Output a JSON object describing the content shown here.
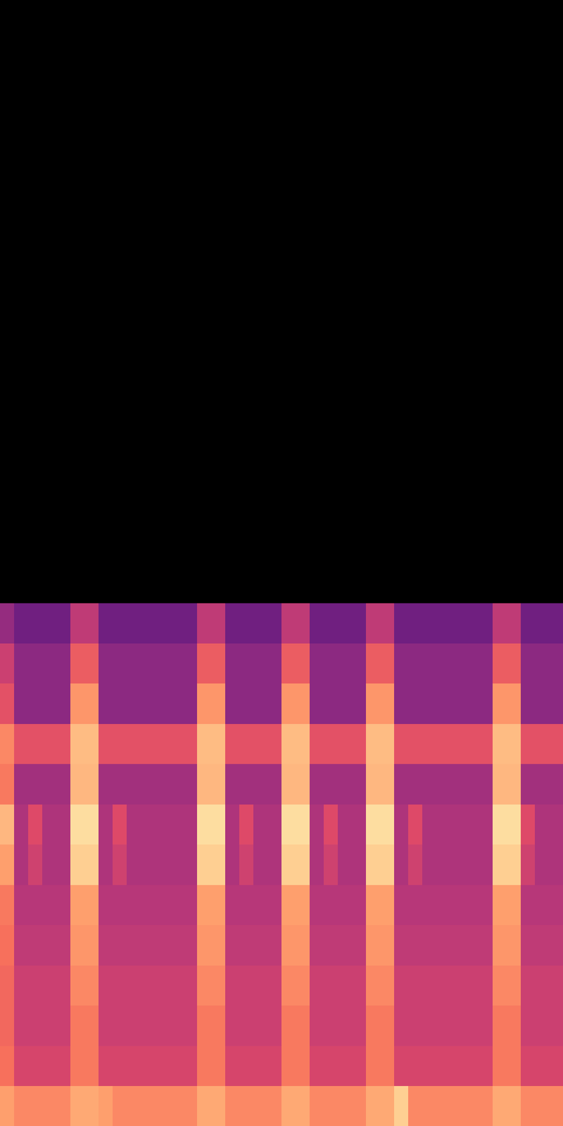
{
  "chart_data": {
    "type": "heatmap",
    "tick_labels": false,
    "xlim": [
      0,
      40
    ],
    "ylim": [
      0,
      28
    ],
    "zlim": [
      0,
      100
    ],
    "x": [
      0.5,
      1.5,
      2.5,
      3.5,
      4.5,
      5.5,
      6.5,
      7.5,
      8.5,
      9.5,
      10.5,
      11.5,
      12.5,
      13.5,
      14.5,
      15.5,
      16.5,
      17.5,
      18.5,
      19.5,
      20.5,
      21.5,
      22.5,
      23.5,
      24.5,
      25.5,
      26.5,
      27.5,
      28.5,
      29.5,
      30.5,
      31.5,
      32.5,
      33.5,
      34.5,
      35.5,
      36.5,
      37.5,
      38.5,
      39.5
    ],
    "y": [
      0.5,
      1.5,
      2.5,
      3.5,
      4.5,
      5.5,
      6.5,
      7.5,
      8.5,
      9.5,
      10.5,
      11.5,
      12.5
    ],
    "z": [
      [
        80,
        75,
        75,
        75,
        75,
        82,
        82,
        80,
        75,
        75,
        75,
        75,
        75,
        75,
        82,
        82,
        75,
        75,
        75,
        75,
        82,
        82,
        75,
        75,
        75,
        75,
        82,
        82,
        90,
        75,
        75,
        75,
        75,
        75,
        75,
        82,
        82,
        75,
        75,
        75
      ],
      [
        70,
        58,
        58,
        58,
        58,
        72,
        72,
        58,
        58,
        58,
        58,
        58,
        58,
        58,
        72,
        72,
        58,
        58,
        58,
        58,
        72,
        72,
        58,
        58,
        58,
        58,
        72,
        72,
        58,
        58,
        58,
        58,
        58,
        58,
        58,
        72,
        72,
        58,
        58,
        58
      ],
      [
        68,
        55,
        55,
        55,
        55,
        72,
        72,
        55,
        55,
        55,
        55,
        55,
        55,
        55,
        72,
        72,
        55,
        55,
        55,
        55,
        72,
        72,
        55,
        55,
        55,
        55,
        72,
        72,
        55,
        55,
        55,
        55,
        55,
        55,
        55,
        72,
        72,
        55,
        55,
        55
      ],
      [
        68,
        55,
        55,
        55,
        55,
        75,
        75,
        55,
        55,
        55,
        55,
        55,
        55,
        55,
        75,
        75,
        55,
        55,
        55,
        55,
        75,
        75,
        55,
        55,
        55,
        55,
        75,
        75,
        55,
        55,
        55,
        55,
        55,
        55,
        55,
        75,
        75,
        55,
        55,
        55
      ],
      [
        70,
        52,
        52,
        52,
        52,
        78,
        78,
        52,
        52,
        52,
        52,
        52,
        52,
        52,
        78,
        78,
        52,
        52,
        52,
        52,
        78,
        78,
        52,
        52,
        52,
        52,
        78,
        78,
        52,
        52,
        52,
        52,
        52,
        52,
        52,
        78,
        78,
        52,
        52,
        52
      ],
      [
        72,
        50,
        50,
        50,
        50,
        80,
        80,
        50,
        50,
        50,
        50,
        50,
        50,
        50,
        80,
        80,
        50,
        50,
        50,
        50,
        80,
        80,
        50,
        50,
        50,
        50,
        80,
        80,
        50,
        50,
        50,
        50,
        50,
        50,
        50,
        80,
        80,
        50,
        50,
        50
      ],
      [
        80,
        48,
        56,
        48,
        48,
        90,
        90,
        48,
        56,
        48,
        48,
        48,
        48,
        48,
        90,
        90,
        48,
        56,
        48,
        48,
        90,
        90,
        48,
        56,
        48,
        48,
        90,
        90,
        48,
        56,
        48,
        48,
        48,
        48,
        48,
        90,
        90,
        56,
        48,
        48
      ],
      [
        85,
        48,
        60,
        48,
        48,
        93,
        93,
        48,
        60,
        48,
        48,
        48,
        48,
        48,
        93,
        93,
        48,
        60,
        48,
        48,
        93,
        93,
        48,
        60,
        48,
        48,
        93,
        93,
        48,
        60,
        48,
        48,
        48,
        48,
        48,
        93,
        93,
        60,
        48,
        48
      ],
      [
        72,
        45,
        45,
        45,
        45,
        85,
        85,
        45,
        45,
        45,
        45,
        45,
        45,
        45,
        85,
        85,
        45,
        45,
        45,
        45,
        85,
        85,
        45,
        45,
        45,
        45,
        85,
        85,
        45,
        45,
        45,
        45,
        45,
        45,
        45,
        85,
        85,
        45,
        45,
        45
      ],
      [
        75,
        62,
        62,
        62,
        62,
        86,
        86,
        62,
        62,
        62,
        62,
        62,
        62,
        62,
        86,
        86,
        62,
        62,
        62,
        62,
        86,
        86,
        62,
        62,
        62,
        62,
        86,
        86,
        62,
        62,
        62,
        62,
        62,
        62,
        62,
        86,
        86,
        62,
        62,
        62
      ],
      [
        62,
        40,
        40,
        40,
        40,
        78,
        78,
        40,
        40,
        40,
        40,
        40,
        40,
        40,
        78,
        78,
        40,
        40,
        40,
        40,
        78,
        78,
        40,
        40,
        40,
        40,
        78,
        78,
        40,
        40,
        40,
        40,
        40,
        40,
        40,
        78,
        78,
        40,
        40,
        40
      ],
      [
        55,
        40,
        40,
        40,
        40,
        65,
        65,
        40,
        40,
        40,
        40,
        40,
        40,
        40,
        65,
        65,
        40,
        40,
        40,
        40,
        65,
        65,
        40,
        40,
        40,
        40,
        65,
        65,
        40,
        40,
        40,
        40,
        40,
        40,
        40,
        65,
        65,
        40,
        40,
        40
      ],
      [
        42,
        33,
        33,
        33,
        33,
        52,
        52,
        33,
        33,
        33,
        33,
        33,
        33,
        33,
        52,
        52,
        33,
        33,
        33,
        33,
        52,
        52,
        33,
        33,
        33,
        33,
        52,
        52,
        33,
        33,
        33,
        33,
        33,
        33,
        33,
        52,
        52,
        33,
        33,
        33
      ]
    ]
  }
}
